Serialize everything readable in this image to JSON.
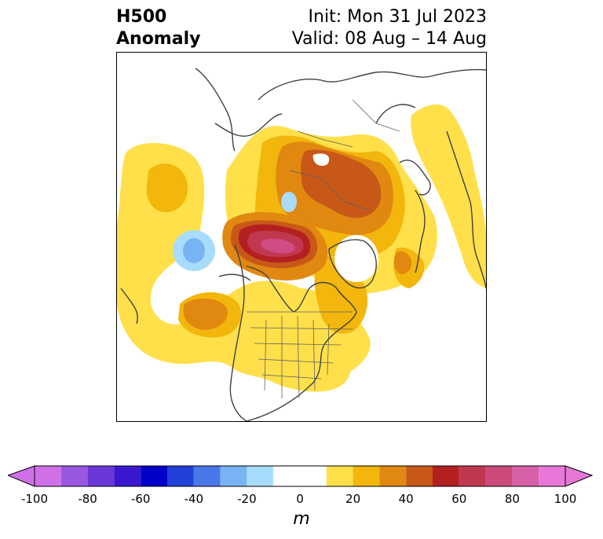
{
  "header": {
    "variable": "H500",
    "field": "Anomaly",
    "init": "Init: Mon 31 Jul 2023",
    "valid": "Valid: 08 Aug – 14 Aug"
  },
  "colorbar": {
    "unit_label": "m",
    "ticks": [
      "-100",
      "-80",
      "-60",
      "-40",
      "-20",
      "0",
      "20",
      "40",
      "60",
      "80",
      "100"
    ],
    "levels": [
      -100,
      -90,
      -80,
      -70,
      -60,
      -50,
      -40,
      -30,
      -20,
      -10,
      10,
      20,
      30,
      40,
      50,
      60,
      70,
      80,
      90,
      100
    ],
    "colors": [
      "#d070e8",
      "#9a58e0",
      "#6a38d8",
      "#3a18d0",
      "#0000c8",
      "#2040d8",
      "#4a78e8",
      "#78b4f4",
      "#a8dcfc",
      "#ffffff",
      "#ffe04a",
      "#f2b60c",
      "#e08810",
      "#c85818",
      "#b42020",
      "#c03850",
      "#cc4a7a",
      "#d860a8",
      "#e878d8"
    ],
    "extend_min_color": "#d070e8",
    "extend_max_color": "#e878d8"
  },
  "map": {
    "projection": "polar stereographic",
    "region": "Northern Hemisphere / North America"
  }
}
